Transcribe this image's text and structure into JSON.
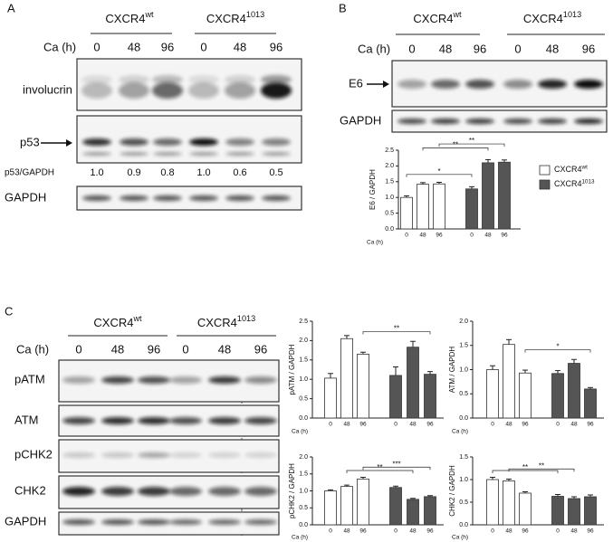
{
  "panels": {
    "a": {
      "label": "A",
      "groups": [
        {
          "name": "CXCR4",
          "sup": "wt"
        },
        {
          "name": "CXCR4",
          "sup": "1013"
        }
      ],
      "time_label": "Ca (h)",
      "times": [
        "0",
        "48",
        "96",
        "0",
        "48",
        "96"
      ],
      "blots": [
        "involucrin",
        "p53",
        "GAPDH"
      ],
      "ratio_label": "p53/GAPDH",
      "ratios": [
        "1.0",
        "0.9",
        "0.8",
        "1.0",
        "0.6",
        "0.5"
      ]
    },
    "b": {
      "label": "B",
      "groups": [
        {
          "name": "CXCR4",
          "sup": "wt"
        },
        {
          "name": "CXCR4",
          "sup": "1013"
        }
      ],
      "time_label": "Ca (h)",
      "times": [
        "0",
        "48",
        "96",
        "0",
        "48",
        "96"
      ],
      "blots": [
        "E6",
        "GAPDH"
      ]
    },
    "c": {
      "label": "C",
      "groups": [
        {
          "name": "CXCR4",
          "sup": "wt"
        },
        {
          "name": "CXCR4",
          "sup": "1013"
        }
      ],
      "time_label": "Ca (h)",
      "times": [
        "0",
        "48",
        "96",
        "0",
        "48",
        "96"
      ],
      "blots": [
        "pATM",
        "ATM",
        "pCHK2",
        "CHK2",
        "GAPDH"
      ]
    }
  },
  "chart_data": [
    {
      "type": "bar",
      "ylabel": "E6 / GAPDH",
      "xlabel": "Ca (h)",
      "categories": [
        "0",
        "48",
        "96",
        "0",
        "48",
        "96"
      ],
      "series": [
        {
          "name": "CXCR4",
          "name_sup": "wt",
          "color": "#ffffff",
          "values": [
            1.0,
            1.42,
            1.43,
            null,
            null,
            null
          ],
          "errors": [
            0.05,
            0.05,
            0.05,
            null,
            null,
            null
          ]
        },
        {
          "name": "CXCR4",
          "name_sup": "1013",
          "color": "#555555",
          "values": [
            null,
            null,
            null,
            1.27,
            2.1,
            2.12
          ],
          "errors": [
            null,
            null,
            null,
            0.07,
            0.1,
            0.07
          ]
        }
      ],
      "ylim": [
        0,
        2.5
      ],
      "yticks": [
        {
          "value": 0,
          "label": "0.0"
        },
        {
          "value": 0.5,
          "label": "0.5"
        },
        {
          "value": 1,
          "label": "1.0"
        },
        {
          "value": 1.5,
          "label": "1.5"
        },
        {
          "value": 2,
          "label": "2.0"
        },
        {
          "value": 2.5,
          "label": "2.5"
        }
      ],
      "annotations": [
        {
          "from": 0,
          "to": 3,
          "label": "*"
        },
        {
          "from": 1,
          "to": 4,
          "label": "**"
        },
        {
          "from": 2,
          "to": 5,
          "label": "**"
        }
      ]
    },
    {
      "type": "bar",
      "ylabel": "pATM / GAPDH",
      "xlabel": "Ca (h)",
      "categories": [
        "0",
        "48",
        "96",
        "0",
        "48",
        "96"
      ],
      "series": [
        {
          "color": "#ffffff",
          "values": [
            1.03,
            2.05,
            1.65,
            null,
            null,
            null
          ],
          "errors": [
            0.12,
            0.08,
            0.05,
            null,
            null,
            null
          ]
        },
        {
          "color": "#555555",
          "values": [
            null,
            null,
            null,
            1.1,
            1.83,
            1.13
          ],
          "errors": [
            null,
            null,
            null,
            0.22,
            0.15,
            0.07
          ]
        }
      ],
      "ylim": [
        0,
        2.5
      ],
      "yticks": [
        {
          "value": 0,
          "label": "0.0"
        },
        {
          "value": 0.5,
          "label": "0.5"
        },
        {
          "value": 1,
          "label": "1.0"
        },
        {
          "value": 1.5,
          "label": "1.5"
        },
        {
          "value": 2,
          "label": "2.0"
        },
        {
          "value": 2.5,
          "label": "2.5"
        }
      ],
      "annotations": [
        {
          "from": 2,
          "to": 5,
          "label": "**"
        }
      ]
    },
    {
      "type": "bar",
      "ylabel": "ATM / GAPDH",
      "xlabel": "Ca (h)",
      "categories": [
        "0",
        "48",
        "96",
        "0",
        "48",
        "96"
      ],
      "series": [
        {
          "color": "#ffffff",
          "values": [
            1.0,
            1.52,
            0.93,
            null,
            null,
            null
          ],
          "errors": [
            0.08,
            0.1,
            0.06,
            null,
            null,
            null
          ]
        },
        {
          "color": "#555555",
          "values": [
            null,
            null,
            null,
            0.92,
            1.13,
            0.6
          ],
          "errors": [
            null,
            null,
            null,
            0.06,
            0.08,
            0.03
          ]
        }
      ],
      "ylim": [
        0,
        2
      ],
      "yticks": [
        {
          "value": 0,
          "label": "0.0"
        },
        {
          "value": 0.5,
          "label": "0.5"
        },
        {
          "value": 1,
          "label": "1.0"
        },
        {
          "value": 1.5,
          "label": "1.5"
        },
        {
          "value": 2,
          "label": "2.0"
        }
      ],
      "annotations": [
        {
          "from": 2,
          "to": 5,
          "label": "*"
        }
      ]
    },
    {
      "type": "bar",
      "ylabel": "pCHK2 / GAPDH",
      "xlabel": "Ca (h)",
      "categories": [
        "0",
        "48",
        "96",
        "0",
        "48",
        "96"
      ],
      "series": [
        {
          "color": "#ffffff",
          "values": [
            1.0,
            1.13,
            1.35,
            null,
            null,
            null
          ],
          "errors": [
            0.03,
            0.04,
            0.05,
            null,
            null,
            null
          ]
        },
        {
          "color": "#555555",
          "values": [
            null,
            null,
            null,
            1.1,
            0.75,
            0.83
          ],
          "errors": [
            null,
            null,
            null,
            0.04,
            0.03,
            0.03
          ]
        }
      ],
      "ylim": [
        0,
        2
      ],
      "yticks": [
        {
          "value": 0,
          "label": "0.0"
        },
        {
          "value": 0.5,
          "label": "0.5"
        },
        {
          "value": 1,
          "label": "1.0"
        },
        {
          "value": 1.5,
          "label": "1.5"
        },
        {
          "value": 2,
          "label": "2.0"
        }
      ],
      "annotations": [
        {
          "from": 1,
          "to": 4,
          "label": "**"
        },
        {
          "from": 2,
          "to": 5,
          "label": "***"
        }
      ]
    },
    {
      "type": "bar",
      "ylabel": "CHK2 / GAPDH",
      "xlabel": "Ca (h)",
      "categories": [
        "0",
        "48",
        "96",
        "0",
        "48",
        "96"
      ],
      "series": [
        {
          "color": "#ffffff",
          "values": [
            1.0,
            0.97,
            0.7,
            null,
            null,
            null
          ],
          "errors": [
            0.05,
            0.04,
            0.03,
            null,
            null,
            null
          ]
        },
        {
          "color": "#555555",
          "values": [
            null,
            null,
            null,
            0.63,
            0.58,
            0.62
          ],
          "errors": [
            null,
            null,
            null,
            0.04,
            0.04,
            0.04
          ]
        }
      ],
      "ylim": [
        0,
        1.5
      ],
      "yticks": [
        {
          "value": 0,
          "label": "0.0"
        },
        {
          "value": 0.5,
          "label": "0.5"
        },
        {
          "value": 1,
          "label": "1.0"
        },
        {
          "value": 1.5,
          "label": "1.5"
        }
      ],
      "annotations": [
        {
          "from": 0,
          "to": 3,
          "label": "**"
        },
        {
          "from": 1,
          "to": 4,
          "label": "**"
        }
      ]
    }
  ]
}
